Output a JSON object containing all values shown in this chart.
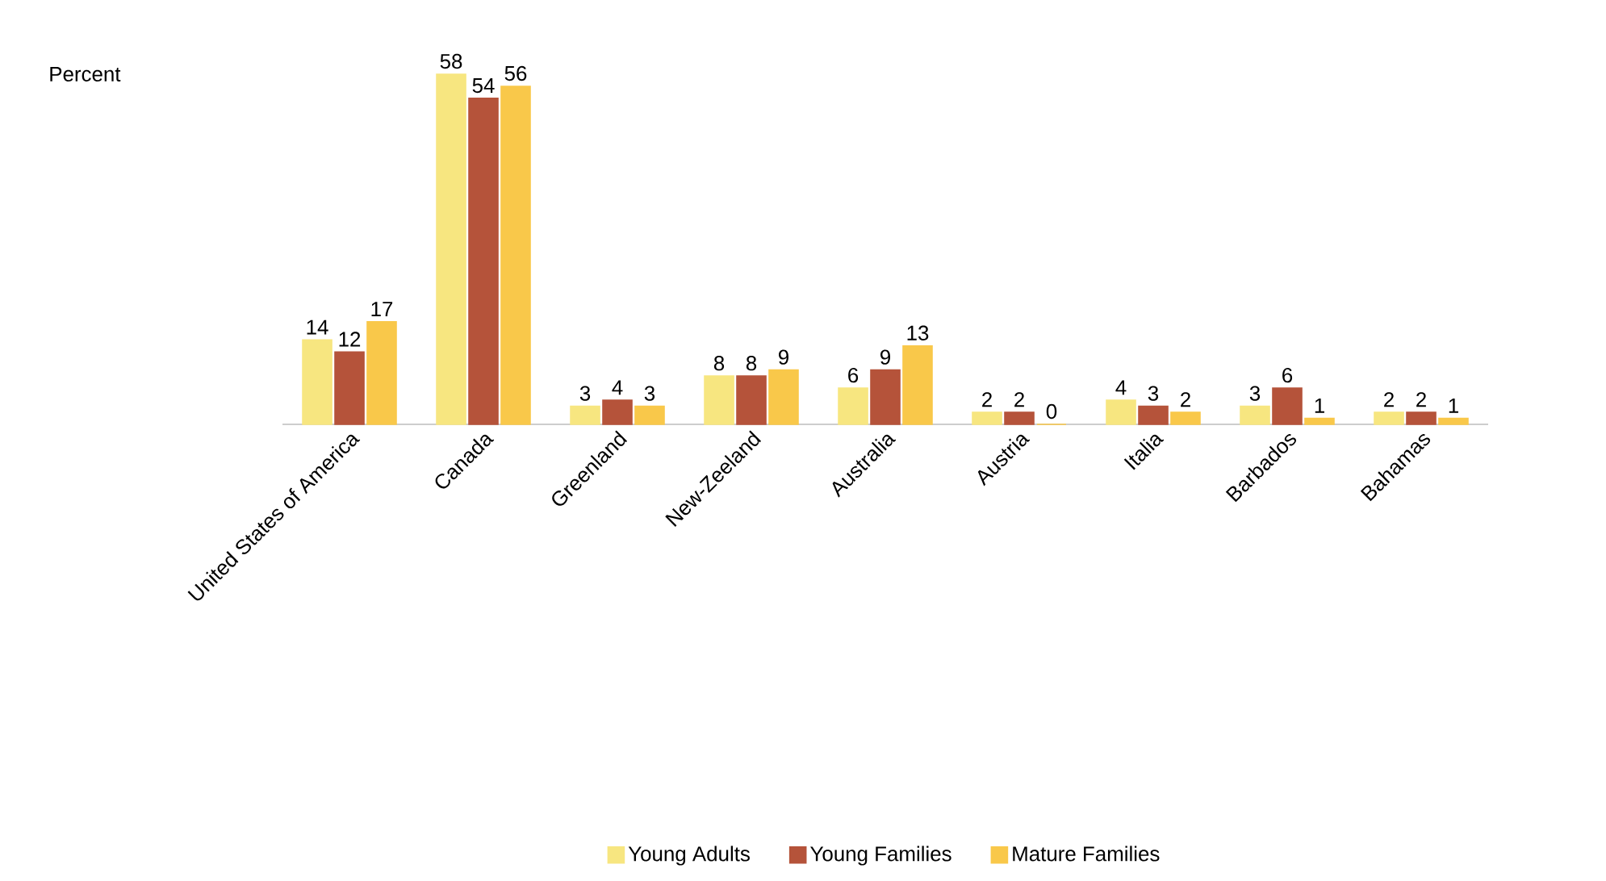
{
  "chart_data": {
    "type": "bar",
    "ylabel": "Percent",
    "categories": [
      "United States of America",
      "Canada",
      "Greenland",
      "New-Zeeland",
      "Australia",
      "Austria",
      "Italia",
      "Barbados",
      "Bahamas"
    ],
    "series": [
      {
        "name": "Young Adults",
        "color": "#f7e680",
        "values": [
          14,
          58,
          3,
          8,
          6,
          2,
          4,
          3,
          2
        ]
      },
      {
        "name": "Young Families",
        "color": "#b5533a",
        "values": [
          12,
          54,
          4,
          8,
          9,
          2,
          3,
          6,
          2
        ]
      },
      {
        "name": "Mature Families",
        "color": "#f9c84a",
        "values": [
          17,
          56,
          3,
          9,
          13,
          0,
          2,
          1,
          1
        ]
      }
    ],
    "data_labels": true,
    "legend": "bottom"
  }
}
